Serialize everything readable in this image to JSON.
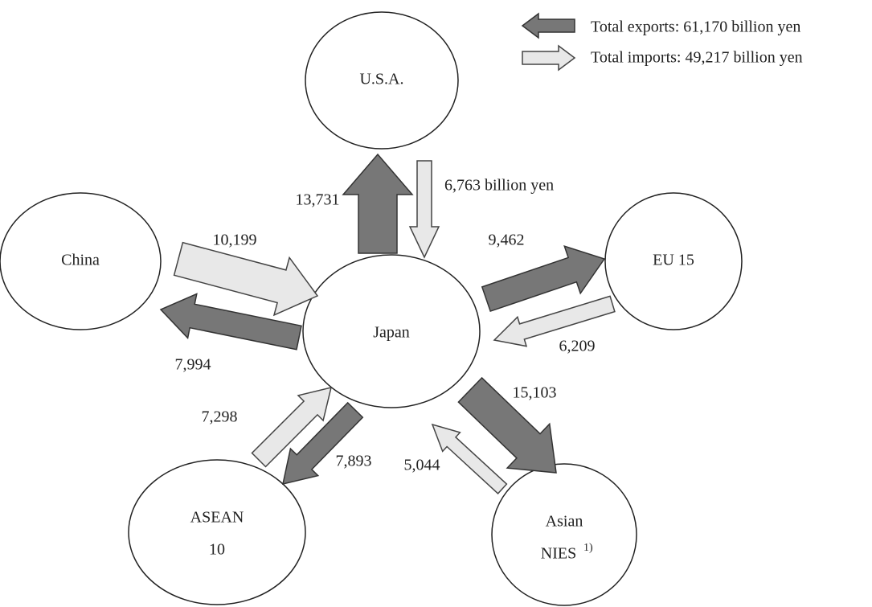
{
  "legend": [
    {
      "label": "Total exports: 61,170 billion yen"
    },
    {
      "label": "Total imports: 49,217 billion yen"
    }
  ],
  "nodes": [
    {
      "lines": [
        "U.S.A."
      ]
    },
    {
      "lines": [
        "China"
      ]
    },
    {
      "lines": [
        "EU 15"
      ]
    },
    {
      "lines": [
        "Japan"
      ]
    },
    {
      "lines": [
        "ASEAN",
        "10"
      ]
    },
    {
      "lines": [
        "Asian",
        "NIES"
      ],
      "note": "1)"
    }
  ],
  "flows": [
    {
      "label": "13,731"
    },
    {
      "label": "6,763 billion yen"
    },
    {
      "label": "10,199"
    },
    {
      "label": "7,994"
    },
    {
      "label": "9,462"
    },
    {
      "label": "6,209"
    },
    {
      "label": "15,103"
    },
    {
      "label": "5,044"
    },
    {
      "label": "7,298"
    },
    {
      "label": "7,893"
    }
  ]
}
